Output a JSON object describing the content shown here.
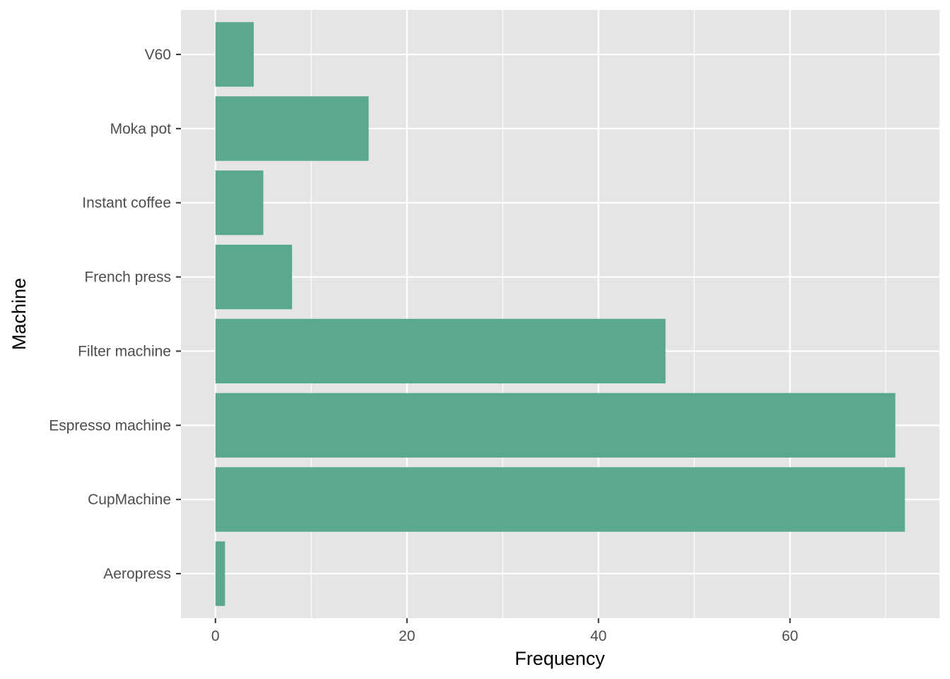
{
  "chart_data": {
    "type": "bar",
    "orientation": "horizontal",
    "title": "",
    "xlabel": "Frequency",
    "ylabel": "Machine",
    "categories": [
      "Aeropress",
      "CupMachine",
      "Espresso machine",
      "Filter machine",
      "French press",
      "Instant coffee",
      "Moka pot",
      "V60"
    ],
    "values": [
      1,
      72,
      71,
      47,
      8,
      5,
      16,
      4
    ],
    "xlim": [
      -3.6,
      75.6
    ],
    "xticks": [
      0,
      20,
      40,
      60
    ],
    "grid": true,
    "bar_color": "#5aa890",
    "panel_color": "#e5e5e5",
    "grid_color": "#ffffff"
  }
}
